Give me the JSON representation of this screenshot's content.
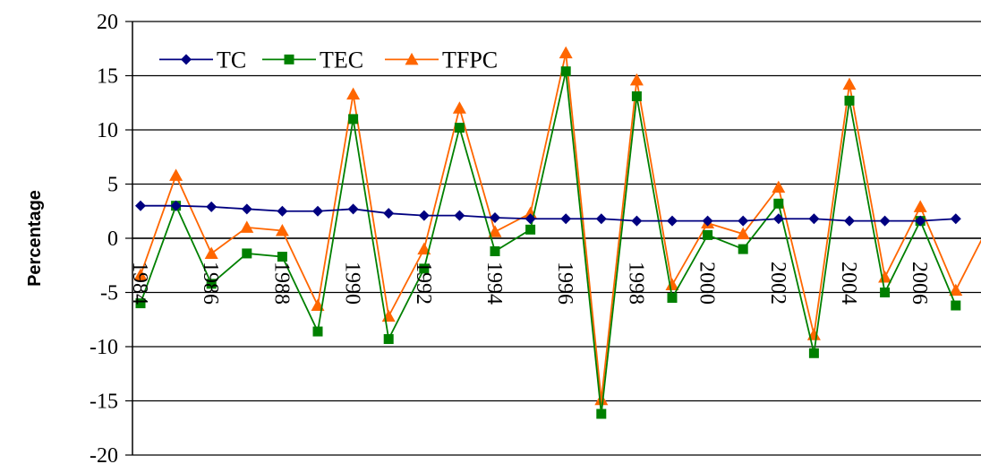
{
  "chart_data": {
    "type": "line",
    "title": "",
    "xlabel": "",
    "ylabel": "Percentage",
    "ylim": [
      -20,
      20
    ],
    "yticks": [
      20,
      15,
      10,
      5,
      0,
      -5,
      -10,
      -15,
      -20
    ],
    "x": [
      1984,
      1985,
      1986,
      1987,
      1988,
      1989,
      1990,
      1991,
      1992,
      1993,
      1994,
      1995,
      1996,
      1997,
      1998,
      1999,
      2000,
      2001,
      2002,
      2003,
      2004,
      2005,
      2006,
      2007,
      2008
    ],
    "x_tick_labels": [
      "1984",
      "1986",
      "1988",
      "1990",
      "1992",
      "1994",
      "1996",
      "1998",
      "2000",
      "2002",
      "2004",
      "2006"
    ],
    "x_tick_values": [
      1984,
      1986,
      1988,
      1990,
      1992,
      1994,
      1996,
      1998,
      2000,
      2002,
      2004,
      2006
    ],
    "grid": "horizontal",
    "legend": "top-left",
    "series": [
      {
        "name": "TC",
        "color": "#000080",
        "marker": "diamond",
        "values": [
          3.0,
          3.0,
          2.9,
          2.7,
          2.5,
          2.5,
          2.7,
          2.3,
          2.1,
          2.1,
          1.9,
          1.8,
          1.8,
          1.8,
          1.6,
          1.6,
          1.6,
          1.6,
          1.8,
          1.8,
          1.6,
          1.6,
          1.6,
          1.8,
          null
        ]
      },
      {
        "name": "TEC",
        "color": "#008000",
        "marker": "square",
        "values": [
          -6.0,
          3.0,
          -4.2,
          -1.4,
          -1.7,
          -8.6,
          11.0,
          -9.3,
          -2.8,
          10.2,
          -1.2,
          0.8,
          15.4,
          -16.2,
          13.1,
          -5.5,
          0.3,
          -1.0,
          3.2,
          -10.6,
          12.7,
          -5.0,
          1.6,
          -6.2,
          null
        ]
      },
      {
        "name": "TFPC",
        "color": "#ff6600",
        "marker": "triangle",
        "values": [
          -3.4,
          5.8,
          -1.4,
          1.0,
          0.7,
          -6.2,
          13.3,
          -7.2,
          -1.0,
          12.0,
          0.6,
          2.3,
          17.1,
          -14.9,
          14.6,
          -4.3,
          1.4,
          0.4,
          4.7,
          -8.9,
          14.2,
          -3.6,
          2.9,
          -4.8,
          1.6
        ]
      }
    ]
  }
}
